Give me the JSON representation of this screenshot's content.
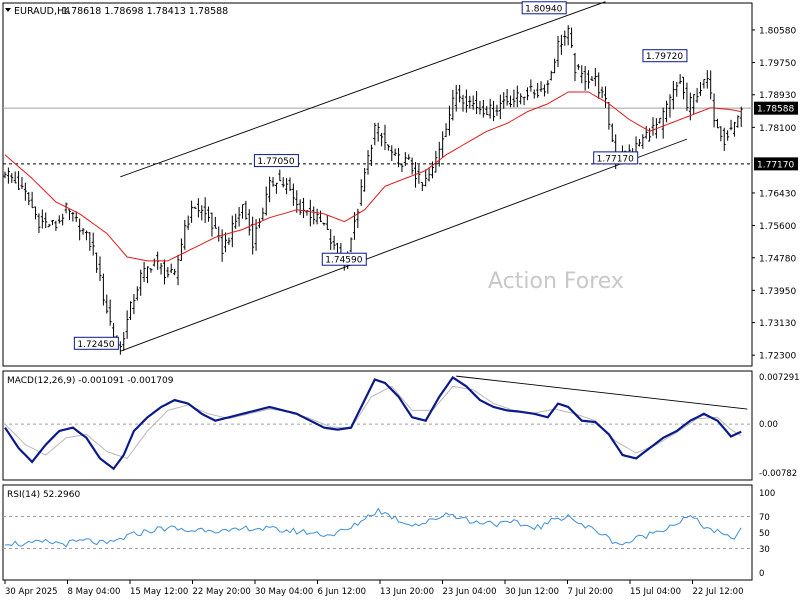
{
  "header": {
    "symbol": "EURAUD,H4",
    "ohlc": "1.78618 1.78698 1.78413 1.78588"
  },
  "watermark": "Action Forex",
  "colors": {
    "price": "#000000",
    "ma": "#e0191c",
    "macd": "#0b1a8a",
    "signal": "#b8b8b8",
    "rsi": "#3d8fd6",
    "grid": "#a0a0a0"
  },
  "chart_data": [
    {
      "type": "candlestick",
      "panel": "price",
      "ylim": [
        1.7205,
        1.8124
      ],
      "y_ticks": [
        "1.80580",
        "1.79750",
        "1.78930",
        "1.78100",
        "1.76430",
        "1.75600",
        "1.74780",
        "1.73950",
        "1.73130",
        "1.72300"
      ],
      "current_price": "1.78588",
      "level_line": "1.77170",
      "x_ticks": [
        "30 Apr 2025",
        "8 May 04:00",
        "15 May 12:00",
        "22 May 20:00",
        "30 May 04:00",
        "6 Jun 12:00",
        "13 Jun 20:00",
        "23 Jun 04:00",
        "30 Jun 12:00",
        "7 Jul 20:00",
        "15 Jul 04:00",
        "22 Jul 12:00"
      ],
      "close_path": [
        [
          0,
          1.77
        ],
        [
          6,
          1.764
        ],
        [
          10,
          1.757
        ],
        [
          15,
          1.756
        ],
        [
          18,
          1.76
        ],
        [
          22,
          1.756
        ],
        [
          26,
          1.75
        ],
        [
          29,
          1.738
        ],
        [
          32,
          1.728
        ],
        [
          34,
          1.725
        ],
        [
          37,
          1.735
        ],
        [
          40,
          1.743
        ],
        [
          44,
          1.747
        ],
        [
          47,
          1.744
        ],
        [
          50,
          1.743
        ],
        [
          53,
          1.756
        ],
        [
          56,
          1.761
        ],
        [
          60,
          1.758
        ],
        [
          64,
          1.75
        ],
        [
          67,
          1.755
        ],
        [
          70,
          1.761
        ],
        [
          73,
          1.752
        ],
        [
          76,
          1.76
        ],
        [
          78,
          1.766
        ],
        [
          80,
          1.768
        ],
        [
          83,
          1.766
        ],
        [
          86,
          1.761
        ],
        [
          90,
          1.759
        ],
        [
          94,
          1.756
        ],
        [
          97,
          1.75
        ],
        [
          100,
          1.747
        ],
        [
          103,
          1.756
        ],
        [
          106,
          1.769
        ],
        [
          109,
          1.781
        ],
        [
          112,
          1.777
        ],
        [
          115,
          1.773
        ],
        [
          119,
          1.772
        ],
        [
          123,
          1.766
        ],
        [
          126,
          1.77
        ],
        [
          129,
          1.779
        ],
        [
          133,
          1.79
        ],
        [
          136,
          1.788
        ],
        [
          140,
          1.786
        ],
        [
          144,
          1.785
        ],
        [
          147,
          1.788
        ],
        [
          150,
          1.788
        ],
        [
          154,
          1.79
        ],
        [
          157,
          1.79
        ],
        [
          160,
          1.792
        ],
        [
          163,
          1.802
        ],
        [
          166,
          1.805
        ],
        [
          168,
          1.796
        ],
        [
          170,
          1.794
        ],
        [
          174,
          1.793
        ],
        [
          177,
          1.787
        ],
        [
          180,
          1.773
        ],
        [
          183,
          1.774
        ],
        [
          186,
          1.776
        ],
        [
          190,
          1.78
        ],
        [
          193,
          1.782
        ],
        [
          196,
          1.788
        ],
        [
          199,
          1.793
        ],
        [
          201,
          1.786
        ],
        [
          204,
          1.79
        ],
        [
          207,
          1.793
        ],
        [
          209,
          1.784
        ],
        [
          212,
          1.778
        ],
        [
          215,
          1.782
        ],
        [
          217,
          1.7859
        ]
      ],
      "ma_path": [
        [
          0,
          1.774
        ],
        [
          8,
          1.768
        ],
        [
          15,
          1.762
        ],
        [
          22,
          1.759
        ],
        [
          30,
          1.754
        ],
        [
          36,
          1.748
        ],
        [
          42,
          1.747
        ],
        [
          48,
          1.747
        ],
        [
          55,
          1.75
        ],
        [
          62,
          1.753
        ],
        [
          70,
          1.755
        ],
        [
          78,
          1.758
        ],
        [
          86,
          1.76
        ],
        [
          94,
          1.759
        ],
        [
          100,
          1.757
        ],
        [
          106,
          1.76
        ],
        [
          112,
          1.766
        ],
        [
          118,
          1.768
        ],
        [
          124,
          1.77
        ],
        [
          130,
          1.774
        ],
        [
          136,
          1.777
        ],
        [
          142,
          1.78
        ],
        [
          148,
          1.782
        ],
        [
          154,
          1.785
        ],
        [
          160,
          1.787
        ],
        [
          166,
          1.79
        ],
        [
          172,
          1.79
        ],
        [
          178,
          1.787
        ],
        [
          184,
          1.783
        ],
        [
          190,
          1.78
        ],
        [
          196,
          1.782
        ],
        [
          202,
          1.784
        ],
        [
          208,
          1.786
        ],
        [
          214,
          1.7855
        ],
        [
          217,
          1.785
        ]
      ],
      "channel_lines": [
        {
          "from": [
            34,
            1.724
          ],
          "to": [
            201,
            1.778
          ]
        },
        {
          "from": [
            34,
            1.7684
          ],
          "to": [
            177,
            1.813
          ]
        }
      ],
      "annotations": [
        {
          "label": "1.72450",
          "x": 34,
          "y": 1.7245
        },
        {
          "label": "1.77050",
          "x": 80,
          "y": 1.7705
        },
        {
          "label": "1.74590",
          "x": 100,
          "y": 1.7459
        },
        {
          "label": "1.80940",
          "x": 166,
          "y": 1.8094
        },
        {
          "label": "1.77170",
          "x": 180,
          "y": 1.7717
        },
        {
          "label": "1.79720",
          "x": 201,
          "y": 1.7972
        }
      ]
    },
    {
      "type": "line",
      "panel": "macd",
      "title": "MACD(12,26,9) -0.001091 -0.001709",
      "ylim": [
        -0.008,
        0.0076
      ],
      "y_ticks": [
        "0.007291",
        "0.00",
        "-0.00782"
      ],
      "zero_line": 0.0,
      "macd_path": [
        [
          0,
          -0.0005
        ],
        [
          4,
          -0.0035
        ],
        [
          8,
          -0.0055
        ],
        [
          12,
          -0.003
        ],
        [
          16,
          -0.001
        ],
        [
          20,
          -0.0005
        ],
        [
          24,
          -0.002
        ],
        [
          28,
          -0.005
        ],
        [
          32,
          -0.0065
        ],
        [
          35,
          -0.0045
        ],
        [
          38,
          -0.001
        ],
        [
          42,
          0.001
        ],
        [
          46,
          0.0025
        ],
        [
          50,
          0.0035
        ],
        [
          54,
          0.003
        ],
        [
          58,
          0.0015
        ],
        [
          62,
          0.0005
        ],
        [
          66,
          0.001
        ],
        [
          70,
          0.0015
        ],
        [
          74,
          0.002
        ],
        [
          78,
          0.0025
        ],
        [
          82,
          0.002
        ],
        [
          86,
          0.0015
        ],
        [
          90,
          0.0005
        ],
        [
          94,
          -0.0005
        ],
        [
          98,
          -0.0008
        ],
        [
          102,
          -0.0005
        ],
        [
          106,
          0.0035
        ],
        [
          109,
          0.0065
        ],
        [
          112,
          0.006
        ],
        [
          116,
          0.004
        ],
        [
          120,
          0.001
        ],
        [
          124,
          0.0005
        ],
        [
          128,
          0.004
        ],
        [
          132,
          0.0068
        ],
        [
          136,
          0.0055
        ],
        [
          140,
          0.0035
        ],
        [
          144,
          0.0025
        ],
        [
          148,
          0.002
        ],
        [
          152,
          0.0018
        ],
        [
          156,
          0.0015
        ],
        [
          160,
          0.001
        ],
        [
          163,
          0.003
        ],
        [
          166,
          0.0025
        ],
        [
          170,
          0.0005
        ],
        [
          174,
          0.0003
        ],
        [
          178,
          -0.0015
        ],
        [
          182,
          -0.0045
        ],
        [
          186,
          -0.005
        ],
        [
          190,
          -0.0035
        ],
        [
          194,
          -0.002
        ],
        [
          198,
          -0.001
        ],
        [
          202,
          0.0005
        ],
        [
          206,
          0.0015
        ],
        [
          210,
          0.0005
        ],
        [
          214,
          -0.0018
        ],
        [
          217,
          -0.0011
        ]
      ],
      "signal_path": [
        [
          0,
          0.0
        ],
        [
          6,
          -0.003
        ],
        [
          12,
          -0.0045
        ],
        [
          18,
          -0.002
        ],
        [
          24,
          -0.0015
        ],
        [
          30,
          -0.004
        ],
        [
          36,
          -0.005
        ],
        [
          42,
          -0.001
        ],
        [
          48,
          0.002
        ],
        [
          54,
          0.0028
        ],
        [
          60,
          0.0015
        ],
        [
          66,
          0.0008
        ],
        [
          72,
          0.0015
        ],
        [
          78,
          0.0022
        ],
        [
          84,
          0.0018
        ],
        [
          90,
          0.0008
        ],
        [
          96,
          -0.0004
        ],
        [
          102,
          -0.0006
        ],
        [
          108,
          0.004
        ],
        [
          114,
          0.0055
        ],
        [
          120,
          0.002
        ],
        [
          126,
          0.002
        ],
        [
          132,
          0.0055
        ],
        [
          138,
          0.005
        ],
        [
          144,
          0.003
        ],
        [
          150,
          0.002
        ],
        [
          156,
          0.0016
        ],
        [
          162,
          0.0022
        ],
        [
          168,
          0.0015
        ],
        [
          174,
          0.0005
        ],
        [
          180,
          -0.0025
        ],
        [
          186,
          -0.0042
        ],
        [
          192,
          -0.003
        ],
        [
          198,
          -0.0012
        ],
        [
          204,
          0.0008
        ],
        [
          210,
          0.001
        ],
        [
          214,
          -0.0008
        ],
        [
          217,
          -0.0017
        ]
      ],
      "trend_line": {
        "from": [
          133,
          0.007
        ],
        "to": [
          217,
          0.0022
        ]
      }
    },
    {
      "type": "line",
      "panel": "rsi",
      "title": "RSI(14) 52.2960",
      "ylim": [
        0,
        100
      ],
      "y_ticks": [
        "100",
        "70",
        "50",
        "30",
        "0"
      ],
      "levels": [
        70,
        30
      ],
      "rsi_path": [
        [
          0,
          38
        ],
        [
          6,
          35
        ],
        [
          12,
          38
        ],
        [
          18,
          36
        ],
        [
          24,
          40
        ],
        [
          30,
          35
        ],
        [
          36,
          45
        ],
        [
          42,
          52
        ],
        [
          48,
          56
        ],
        [
          54,
          52
        ],
        [
          60,
          55
        ],
        [
          66,
          50
        ],
        [
          72,
          56
        ],
        [
          78,
          54
        ],
        [
          84,
          52
        ],
        [
          90,
          50
        ],
        [
          96,
          47
        ],
        [
          102,
          55
        ],
        [
          106,
          68
        ],
        [
          110,
          78
        ],
        [
          114,
          70
        ],
        [
          118,
          62
        ],
        [
          122,
          60
        ],
        [
          126,
          65
        ],
        [
          130,
          74
        ],
        [
          134,
          70
        ],
        [
          138,
          62
        ],
        [
          142,
          64
        ],
        [
          146,
          60
        ],
        [
          150,
          62
        ],
        [
          154,
          58
        ],
        [
          158,
          57
        ],
        [
          162,
          66
        ],
        [
          166,
          72
        ],
        [
          170,
          58
        ],
        [
          174,
          54
        ],
        [
          178,
          42
        ],
        [
          182,
          35
        ],
        [
          186,
          42
        ],
        [
          190,
          48
        ],
        [
          194,
          55
        ],
        [
          198,
          62
        ],
        [
          202,
          70
        ],
        [
          206,
          58
        ],
        [
          210,
          50
        ],
        [
          214,
          42
        ],
        [
          217,
          52
        ]
      ]
    }
  ]
}
